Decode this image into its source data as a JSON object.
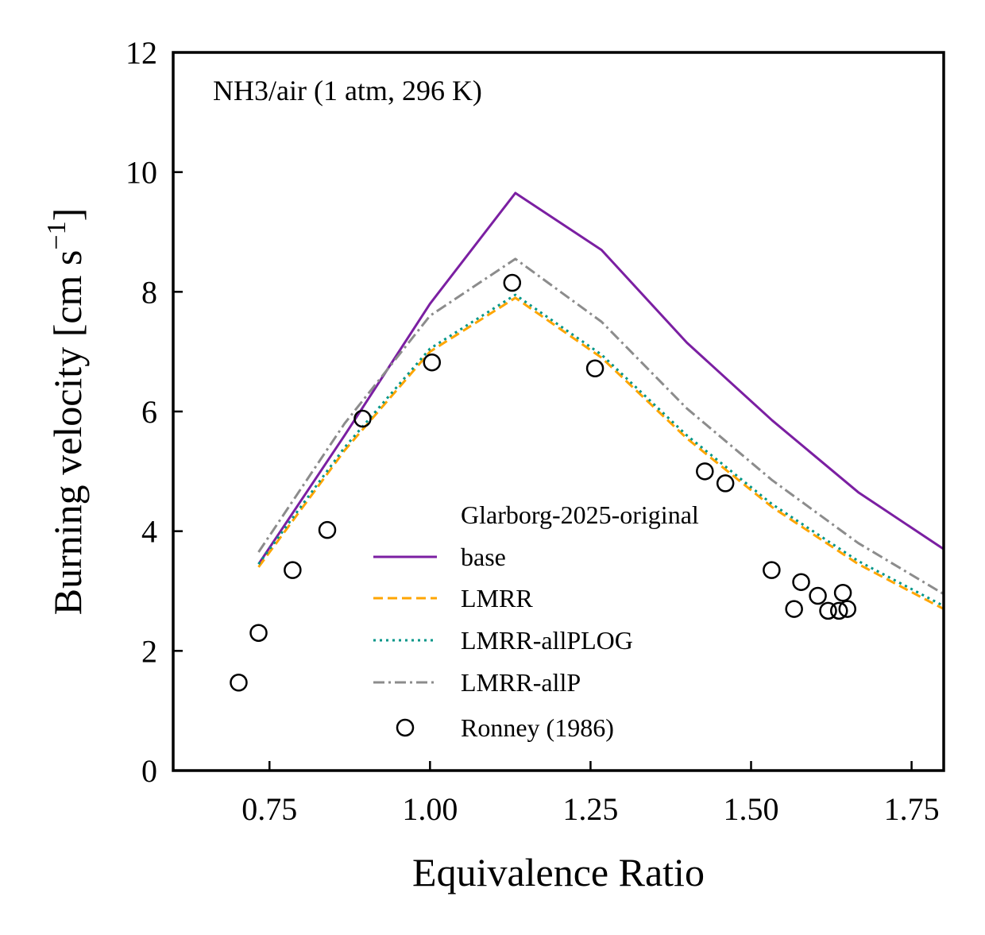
{
  "chart_data": {
    "type": "line",
    "annotation": "NH3/air (1 atm, 296 K)",
    "xlabel": "Equivalence Ratio",
    "ylabel_main": "Burning velocity [cm s",
    "ylabel_sup": "−1",
    "ylabel_close": "]",
    "xlim": [
      0.6,
      1.8
    ],
    "ylim": [
      0,
      12
    ],
    "xticks": [
      0.75,
      1.0,
      1.25,
      1.5,
      1.75
    ],
    "xtick_labels": [
      "0.75",
      "1.00",
      "1.25",
      "1.50",
      "1.75"
    ],
    "yticks": [
      0,
      2,
      4,
      6,
      8,
      10,
      12
    ],
    "ytick_labels": [
      "0",
      "2",
      "4",
      "6",
      "8",
      "10",
      "12"
    ],
    "grid": false,
    "legend_title": "Glarborg-2025-original",
    "legend_position": "lower-center",
    "series": [
      {
        "name": "base",
        "color": "#7b1fa2",
        "dash": "solid",
        "x": [
          0.733,
          0.867,
          1.0,
          1.133,
          1.267,
          1.4,
          1.533,
          1.667,
          1.8
        ],
        "y": [
          3.45,
          5.6,
          7.8,
          9.65,
          8.7,
          7.15,
          5.85,
          4.65,
          3.7
        ]
      },
      {
        "name": "LMRR",
        "color": "#ffa500",
        "dash": "dashed",
        "x": [
          0.733,
          0.867,
          1.0,
          1.133,
          1.267,
          1.4,
          1.533,
          1.667,
          1.8
        ],
        "y": [
          3.4,
          5.35,
          7.0,
          7.9,
          6.9,
          5.55,
          4.4,
          3.45,
          2.7
        ]
      },
      {
        "name": "LMRR-allPLOG",
        "color": "#009688",
        "dash": "dotted",
        "x": [
          0.733,
          0.867,
          1.0,
          1.133,
          1.267,
          1.4,
          1.533,
          1.667,
          1.8
        ],
        "y": [
          3.45,
          5.4,
          7.05,
          7.95,
          6.95,
          5.6,
          4.45,
          3.5,
          2.75
        ]
      },
      {
        "name": "LMRR-allP",
        "color": "#8c8c8c",
        "dash": "dashdot",
        "x": [
          0.733,
          0.867,
          1.0,
          1.133,
          1.267,
          1.4,
          1.533,
          1.667,
          1.8
        ],
        "y": [
          3.65,
          5.8,
          7.6,
          8.55,
          7.5,
          6.05,
          4.85,
          3.8,
          2.95
        ]
      },
      {
        "name": "Ronney (1986)",
        "color": "#000000",
        "marker": "circle",
        "x": [
          0.702,
          0.733,
          0.786,
          0.84,
          0.895,
          1.003,
          1.128,
          1.257,
          1.428,
          1.46,
          1.532,
          1.567,
          1.578,
          1.604,
          1.62,
          1.637,
          1.643,
          1.65
        ],
        "y": [
          1.47,
          2.3,
          3.35,
          4.02,
          5.88,
          6.82,
          8.15,
          6.72,
          5.0,
          4.8,
          3.35,
          2.7,
          3.15,
          2.92,
          2.67,
          2.67,
          2.97,
          2.7
        ]
      }
    ]
  }
}
